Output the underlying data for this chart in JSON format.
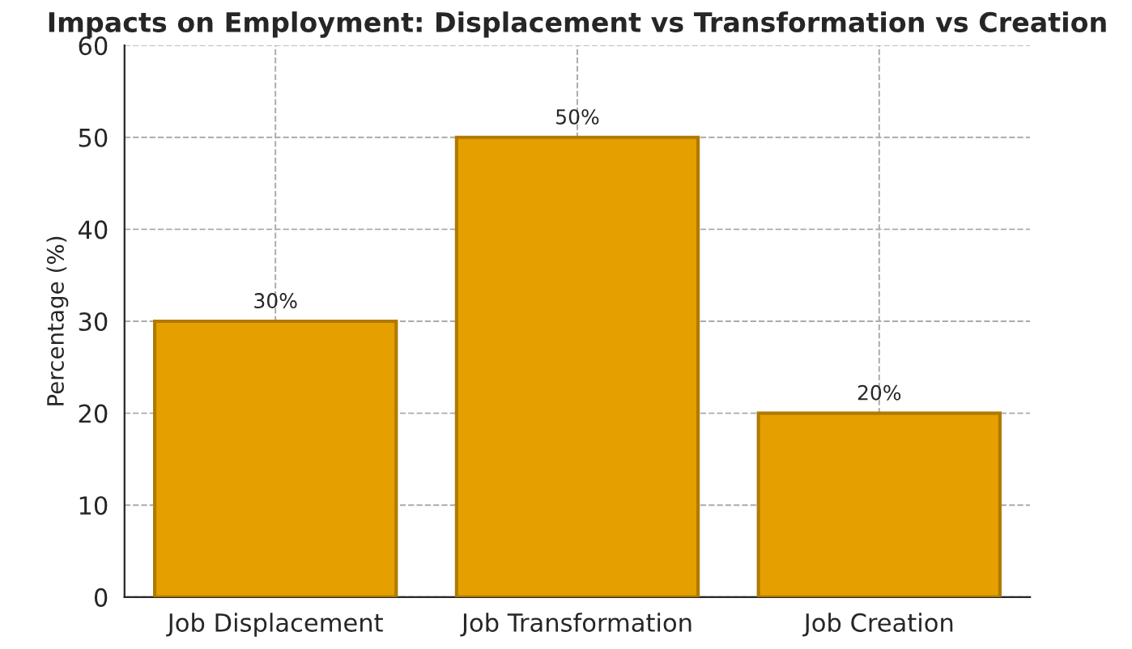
{
  "chart_data": {
    "type": "bar",
    "title": "Impacts on Employment: Displacement vs Transformation vs Creation",
    "ylabel": "Percentage (%)",
    "categories": [
      "Job Displacement",
      "Job Transformation",
      "Job Creation"
    ],
    "values": [
      30,
      50,
      20
    ],
    "color": "#e5a000",
    "value_labels": [
      "30%",
      "50%",
      "20%"
    ],
    "ylim": [
      0,
      60
    ],
    "yticks": [
      0,
      10,
      20,
      30,
      40,
      50,
      60
    ],
    "grid": true
  }
}
